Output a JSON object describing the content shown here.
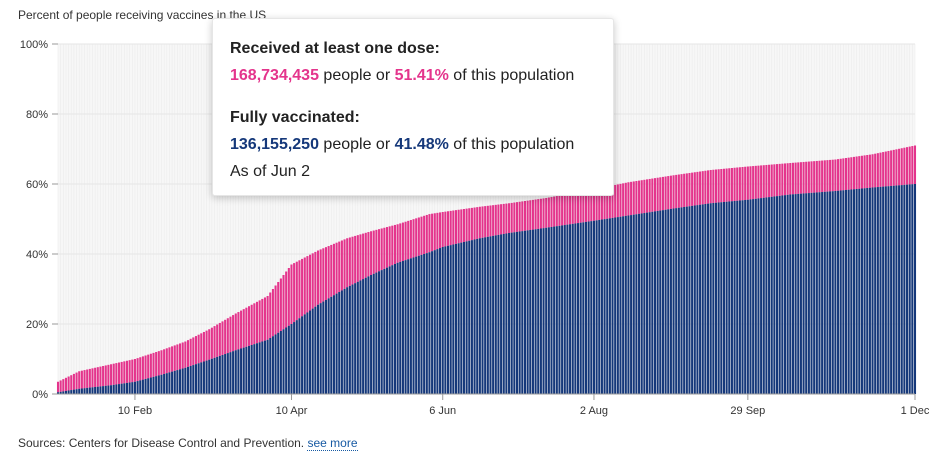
{
  "header": {
    "subtitle": "Percent of people receiving vaccines in the US"
  },
  "tooltip": {
    "dose_heading": "Received at least one dose:",
    "dose_count": "168,734,435",
    "dose_people_text": " people or ",
    "dose_percent": "51.41%",
    "dose_suffix": " of this population",
    "full_heading": "Fully vaccinated:",
    "full_count": "136,155,250",
    "full_people_text": " people or ",
    "full_percent": "41.48%",
    "full_suffix": " of this population",
    "as_of": "As of Jun 2"
  },
  "footer": {
    "source_text": "Sources: Centers for Disease Control and Prevention. ",
    "see_more": "see more"
  },
  "colors": {
    "at_least_one_dose": "#e4348c",
    "fully_vaccinated": "#15387a",
    "grid": "#e6e6e6",
    "plot_background": "#f7f7f7"
  },
  "chart_data": {
    "type": "bar",
    "stacked": true,
    "title": "",
    "subtitle": "Percent of people receiving vaccines in the US",
    "xlabel": "",
    "ylabel": "",
    "ylim": [
      0,
      100
    ],
    "y_ticks": [
      "0%",
      "20%",
      "40%",
      "60%",
      "80%",
      "100%"
    ],
    "y_tick_values": [
      0,
      20,
      40,
      60,
      80,
      100
    ],
    "x_ticks": [
      "10 Feb",
      "10 Apr",
      "6 Jun",
      "2 Aug",
      "29 Sep",
      "1 Dec"
    ],
    "x_tick_dates": [
      "2021-02-10",
      "2021-04-10",
      "2021-06-06",
      "2021-08-02",
      "2021-09-29",
      "2021-12-01"
    ],
    "x_range": [
      "2021-01-12",
      "2021-12-01"
    ],
    "grid": true,
    "highlighted_date": "2021-06-02",
    "series": [
      {
        "key": "fully",
        "color": "#15387a",
        "points": [
          [
            "2021-01-12",
            0.5
          ],
          [
            "2021-01-20",
            1.5
          ],
          [
            "2021-02-01",
            2.5
          ],
          [
            "2021-02-10",
            3.5
          ],
          [
            "2021-02-20",
            5.5
          ],
          [
            "2021-03-01",
            7.5
          ],
          [
            "2021-03-10",
            9.8
          ],
          [
            "2021-03-20",
            12.5
          ],
          [
            "2021-04-01",
            15.5
          ],
          [
            "2021-04-10",
            20.0
          ],
          [
            "2021-04-20",
            25.5
          ],
          [
            "2021-05-01",
            30.5
          ],
          [
            "2021-05-10",
            34.0
          ],
          [
            "2021-05-20",
            37.5
          ],
          [
            "2021-06-01",
            40.5
          ],
          [
            "2021-06-06",
            42.0
          ],
          [
            "2021-06-20",
            44.5
          ],
          [
            "2021-07-01",
            46.0
          ],
          [
            "2021-07-15",
            47.5
          ],
          [
            "2021-08-02",
            49.5
          ],
          [
            "2021-08-15",
            51.0
          ],
          [
            "2021-09-01",
            53.0
          ],
          [
            "2021-09-15",
            54.5
          ],
          [
            "2021-09-29",
            55.5
          ],
          [
            "2021-10-15",
            57.0
          ],
          [
            "2021-11-01",
            58.0
          ],
          [
            "2021-11-15",
            59.0
          ],
          [
            "2021-12-01",
            60.0
          ]
        ]
      },
      {
        "key": "at_least_one",
        "color": "#e4348c",
        "points": [
          [
            "2021-01-12",
            3.5
          ],
          [
            "2021-01-20",
            6.5
          ],
          [
            "2021-02-01",
            8.5
          ],
          [
            "2021-02-10",
            10.0
          ],
          [
            "2021-02-20",
            12.5
          ],
          [
            "2021-03-01",
            15.0
          ],
          [
            "2021-03-10",
            18.5
          ],
          [
            "2021-03-20",
            23.0
          ],
          [
            "2021-04-01",
            28.0
          ],
          [
            "2021-04-10",
            37.0
          ],
          [
            "2021-04-20",
            41.0
          ],
          [
            "2021-05-01",
            44.5
          ],
          [
            "2021-05-10",
            46.5
          ],
          [
            "2021-05-20",
            48.5
          ],
          [
            "2021-06-01",
            51.4
          ],
          [
            "2021-06-06",
            52.0
          ],
          [
            "2021-06-20",
            53.5
          ],
          [
            "2021-07-01",
            54.5
          ],
          [
            "2021-07-15",
            56.0
          ],
          [
            "2021-08-02",
            58.5
          ],
          [
            "2021-08-15",
            60.5
          ],
          [
            "2021-09-01",
            62.5
          ],
          [
            "2021-09-15",
            64.0
          ],
          [
            "2021-09-29",
            65.0
          ],
          [
            "2021-10-15",
            66.0
          ],
          [
            "2021-11-01",
            67.0
          ],
          [
            "2021-11-15",
            68.5
          ],
          [
            "2021-12-01",
            71.0
          ]
        ]
      }
    ]
  }
}
